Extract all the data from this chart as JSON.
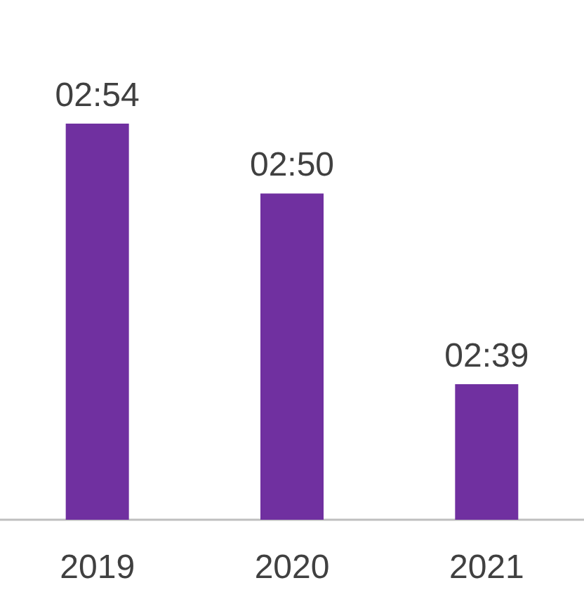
{
  "chart_data": {
    "type": "bar",
    "categories": [
      "2019",
      "2020",
      "2021"
    ],
    "values": [
      2.9,
      2.833,
      2.65
    ],
    "value_labels": [
      "02:54",
      "02:50",
      "02:39"
    ],
    "color": "#7030a0",
    "ylim": [
      2.52,
      2.9
    ]
  }
}
